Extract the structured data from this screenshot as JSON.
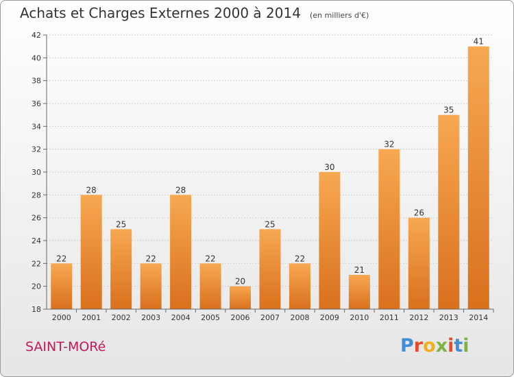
{
  "header": {
    "title": "Achats et Charges Externes 2000 à 2014",
    "subtitle": "(en milliers d'€)"
  },
  "footer": {
    "town": "SAINT-MORé",
    "brand": "Proxiti",
    "brand_colors": [
      "#3f8fd6",
      "#e84b2c",
      "#f2b01e",
      "#7cb342",
      "#e84b2c",
      "#3f8fd6",
      "#7cb342"
    ]
  },
  "colors": {
    "bar_top": "#f7a851",
    "bar_bottom": "#d9701c",
    "grid": "#d0d0d0",
    "axis": "#666666"
  },
  "chart_data": {
    "type": "bar",
    "categories": [
      "2000",
      "2001",
      "2002",
      "2003",
      "2004",
      "2005",
      "2006",
      "2007",
      "2008",
      "2009",
      "2010",
      "2011",
      "2012",
      "2013",
      "2014"
    ],
    "values": [
      22,
      28,
      25,
      22,
      28,
      22,
      20,
      25,
      22,
      30,
      21,
      32,
      26,
      35,
      41
    ],
    "title": "Achats et Charges Externes 2000 à 2014",
    "xlabel": "",
    "ylabel": "",
    "ylim": [
      18,
      42
    ],
    "yticks": [
      18,
      20,
      22,
      24,
      26,
      28,
      30,
      32,
      34,
      36,
      38,
      40,
      42
    ],
    "grid": true,
    "data_labels": true
  }
}
